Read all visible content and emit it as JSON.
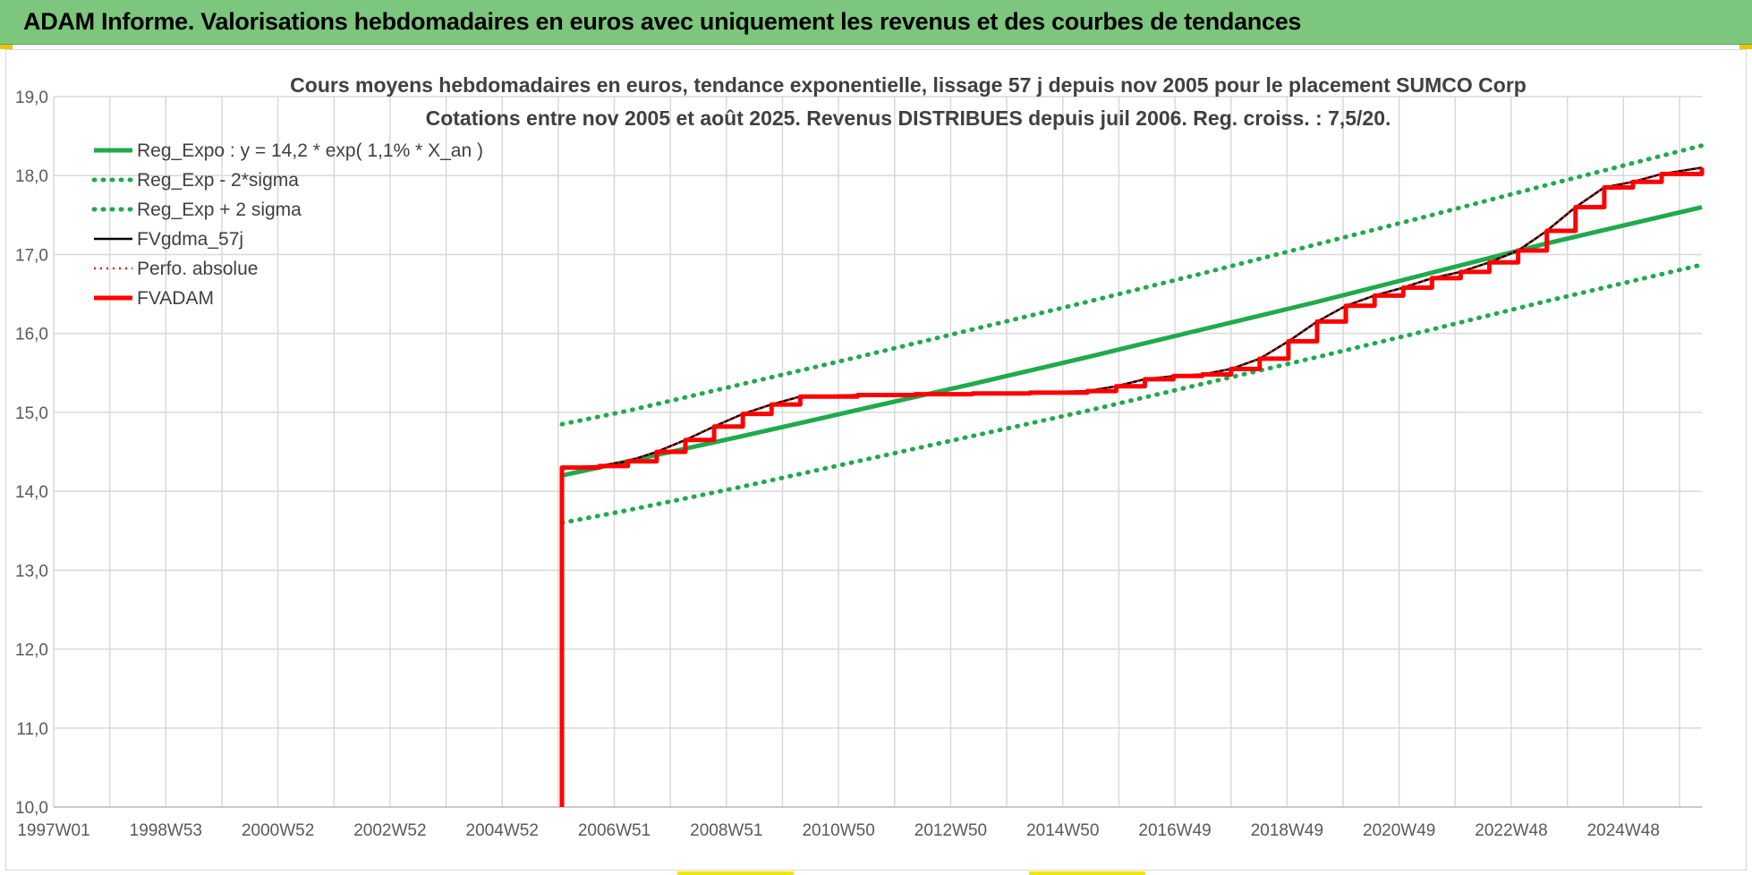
{
  "banner": {
    "title": "ADAM Informe. Valorisations hebdomadaires en euros avec uniquement les revenus et des courbes de tendances"
  },
  "colors": {
    "banner_bg": "#7dc67d",
    "green": "#1faa4d",
    "red": "#ff0000",
    "black": "#000000",
    "grid": "#d9d9d9"
  },
  "chart_data": {
    "type": "line",
    "title": "Cours moyens hebdomadaires en euros, tendance exponentielle, lissage 57 j depuis nov 2005 pour le placement SUMCO Corp",
    "subtitle": "Cotations entre nov 2005 et août 2025. Revenus DISTRIBUES depuis juil 2006. Reg. croiss. : 7,5/20.",
    "xlabel": "",
    "ylabel": "",
    "xlim": [
      1997.0,
      2025.7
    ],
    "ylim": [
      10.0,
      19.0
    ],
    "grid": true,
    "legend_position": "top-left",
    "x_ticks": [
      "1997W01",
      "1998W53",
      "2000W52",
      "2002W52",
      "2004W52",
      "2006W51",
      "2008W51",
      "2010W50",
      "2012W50",
      "2014W50",
      "2016W49",
      "2018W49",
      "2020W49",
      "2022W48",
      "2024W48"
    ],
    "y_ticks": [
      "10,0",
      "11,0",
      "12,0",
      "13,0",
      "14,0",
      "15,0",
      "16,0",
      "17,0",
      "18,0",
      "19,0"
    ],
    "series": [
      {
        "name": "Reg_Expo : y = 14,2 * exp( 1,1% *  X_an )",
        "style": "solid-thick",
        "color": "#1faa4d",
        "x": [
          2005.85,
          2007,
          2009,
          2011,
          2013,
          2015,
          2017,
          2019,
          2021,
          2023,
          2025.7
        ],
        "y": [
          14.2,
          14.38,
          14.7,
          15.03,
          15.36,
          15.7,
          16.05,
          16.4,
          16.77,
          17.14,
          17.6
        ]
      },
      {
        "name": "Reg_Exp - 2*sigma",
        "style": "dotted",
        "color": "#1faa4d",
        "x": [
          2005.85,
          2007,
          2009,
          2011,
          2013,
          2015,
          2017,
          2019,
          2021,
          2023,
          2025.7
        ],
        "y": [
          13.6,
          13.76,
          14.06,
          14.38,
          14.7,
          15.02,
          15.36,
          15.7,
          16.05,
          16.41,
          16.87
        ]
      },
      {
        "name": "Reg_Exp + 2 sigma",
        "style": "dotted",
        "color": "#1faa4d",
        "x": [
          2005.85,
          2007,
          2009,
          2011,
          2013,
          2015,
          2017,
          2019,
          2021,
          2023,
          2025.7
        ],
        "y": [
          14.85,
          15.02,
          15.36,
          15.7,
          16.05,
          16.4,
          16.76,
          17.13,
          17.5,
          17.88,
          18.38
        ]
      },
      {
        "name": "FVgdma_57j",
        "style": "solid-thin",
        "color": "#000000",
        "x": [
          2005.85,
          2006.5,
          2007.0,
          2007.5,
          2008.0,
          2008.5,
          2009.0,
          2009.5,
          2010.0,
          2011.0,
          2012.0,
          2013.0,
          2014.0,
          2015.0,
          2015.5,
          2016.0,
          2016.5,
          2017.0,
          2017.5,
          2018.0,
          2018.5,
          2019.0,
          2019.5,
          2020.0,
          2020.5,
          2021.0,
          2021.5,
          2022.0,
          2022.5,
          2023.0,
          2023.5,
          2024.0,
          2024.5,
          2025.0,
          2025.7
        ],
        "y": [
          14.3,
          14.32,
          14.38,
          14.5,
          14.65,
          14.82,
          14.98,
          15.1,
          15.2,
          15.22,
          15.23,
          15.24,
          15.25,
          15.27,
          15.33,
          15.42,
          15.46,
          15.48,
          15.55,
          15.68,
          15.9,
          16.15,
          16.35,
          16.48,
          16.58,
          16.7,
          16.78,
          16.9,
          17.05,
          17.3,
          17.6,
          17.85,
          17.92,
          18.02,
          18.1
        ]
      },
      {
        "name": "Perfo. absolue",
        "style": "dotted-thin",
        "color": "#ff0000",
        "x": [
          2005.85,
          2006.5,
          2007.0,
          2007.5,
          2008.0,
          2008.5,
          2009.0,
          2009.5,
          2010.0,
          2011.0,
          2012.0,
          2013.0,
          2014.0,
          2015.0,
          2015.5,
          2016.0,
          2016.5,
          2017.0,
          2017.5,
          2018.0,
          2018.5,
          2019.0,
          2019.5,
          2020.0,
          2020.5,
          2021.0,
          2021.5,
          2022.0,
          2022.5,
          2023.0,
          2023.5,
          2024.0,
          2024.5,
          2025.0,
          2025.7
        ],
        "y": [
          14.3,
          14.32,
          14.38,
          14.5,
          14.65,
          14.82,
          14.98,
          15.1,
          15.2,
          15.22,
          15.23,
          15.24,
          15.25,
          15.27,
          15.33,
          15.42,
          15.46,
          15.48,
          15.55,
          15.68,
          15.9,
          16.15,
          16.35,
          16.48,
          16.58,
          16.7,
          16.78,
          16.9,
          17.05,
          17.3,
          17.6,
          17.85,
          17.92,
          18.02,
          18.1
        ]
      },
      {
        "name": "FVADAM",
        "style": "step-thick",
        "color": "#ff0000",
        "x": [
          2005.85,
          2005.85,
          2006.5,
          2007.0,
          2007.5,
          2008.0,
          2008.5,
          2009.0,
          2009.5,
          2010.0,
          2011.0,
          2012.0,
          2013.0,
          2014.0,
          2015.0,
          2015.5,
          2016.0,
          2016.5,
          2017.0,
          2017.5,
          2018.0,
          2018.5,
          2019.0,
          2019.5,
          2020.0,
          2020.5,
          2021.0,
          2021.5,
          2022.0,
          2022.5,
          2023.0,
          2023.5,
          2024.0,
          2024.5,
          2025.0,
          2025.7
        ],
        "y": [
          10.0,
          14.3,
          14.32,
          14.38,
          14.5,
          14.65,
          14.82,
          14.98,
          15.1,
          15.2,
          15.22,
          15.23,
          15.24,
          15.25,
          15.27,
          15.33,
          15.42,
          15.46,
          15.48,
          15.55,
          15.68,
          15.9,
          16.15,
          16.35,
          16.48,
          16.58,
          16.7,
          16.78,
          16.9,
          17.05,
          17.3,
          17.6,
          17.85,
          17.92,
          18.02,
          18.1
        ]
      }
    ]
  }
}
